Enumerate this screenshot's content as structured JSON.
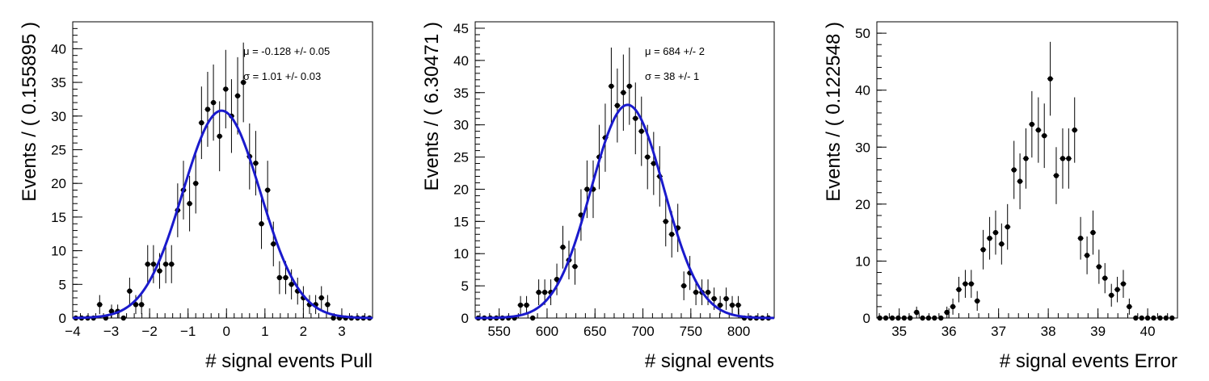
{
  "chart_data": [
    {
      "type": "scatter",
      "xlabel": "# signal events Pull",
      "ylabel": "Events / ( 0.155895 )",
      "xlim": [
        -4,
        3.8
      ],
      "ylim": [
        0,
        44
      ],
      "xticks": [
        -4,
        -3,
        -2,
        -1,
        0,
        1,
        2,
        3
      ],
      "xtick_labels": [
        "−4",
        "−3",
        "−2",
        "−1",
        "0",
        "1",
        "2",
        "3"
      ],
      "yticks": [
        0,
        5,
        10,
        15,
        20,
        25,
        30,
        35,
        40
      ],
      "ytick_labels": [
        "0",
        "5",
        "10",
        "15",
        "20",
        "25",
        "30",
        "35",
        "40"
      ],
      "x": [
        -3.92,
        -3.77,
        -3.61,
        -3.46,
        -3.3,
        -3.14,
        -2.99,
        -2.83,
        -2.68,
        -2.52,
        -2.36,
        -2.21,
        -2.05,
        -1.9,
        -1.74,
        -1.58,
        -1.43,
        -1.27,
        -1.12,
        -0.96,
        -0.8,
        -0.65,
        -0.49,
        -0.34,
        -0.18,
        -0.02,
        0.13,
        0.29,
        0.44,
        0.6,
        0.76,
        0.91,
        1.07,
        1.22,
        1.38,
        1.54,
        1.69,
        1.85,
        2.0,
        2.16,
        2.32,
        2.47,
        2.63,
        2.78,
        2.94,
        3.1,
        3.25,
        3.41,
        3.56,
        3.72
      ],
      "y": [
        0,
        0,
        0,
        0,
        2,
        0,
        1,
        1,
        0,
        4,
        2,
        2,
        8,
        8,
        7,
        8,
        8,
        16,
        19,
        17,
        20,
        29,
        31,
        32,
        27,
        34,
        30,
        33,
        35,
        24,
        23,
        14,
        19,
        11,
        6,
        6,
        5,
        4,
        3,
        2,
        2,
        3,
        2,
        0,
        0,
        0,
        0,
        0,
        0,
        0
      ],
      "fit": {
        "type": "gaussian",
        "mean": -0.128,
        "sigma": 1.01,
        "peak": 30.8,
        "color": "#1a1acc"
      },
      "annotations": [
        "μ = -0.128 +/- 0.05",
        "σ =  1.01 +/- 0.03"
      ]
    },
    {
      "type": "scatter",
      "xlabel": "# signal events",
      "ylabel": "Events / ( 6.30471 )",
      "xlim": [
        525,
        837
      ],
      "ylim": [
        0,
        46
      ],
      "xticks": [
        550,
        600,
        650,
        700,
        750,
        800
      ],
      "xtick_labels": [
        "550",
        "600",
        "650",
        "700",
        "750",
        "800"
      ],
      "yticks": [
        0,
        5,
        10,
        15,
        20,
        25,
        30,
        35,
        40,
        45
      ],
      "ytick_labels": [
        "0",
        "5",
        "10",
        "15",
        "20",
        "25",
        "30",
        "35",
        "40",
        "45"
      ],
      "x": [
        528.2,
        534.5,
        540.8,
        547.1,
        553.4,
        559.7,
        566.0,
        572.3,
        578.6,
        585.0,
        591.3,
        597.6,
        603.9,
        610.2,
        616.5,
        622.8,
        629.1,
        635.4,
        641.7,
        648.1,
        654.4,
        660.7,
        667.0,
        673.3,
        679.6,
        685.9,
        692.2,
        698.5,
        704.8,
        711.2,
        717.5,
        723.8,
        730.1,
        736.4,
        742.7,
        749.0,
        755.3,
        761.6,
        767.9,
        774.3,
        780.6,
        786.9,
        793.2,
        799.5,
        805.8,
        812.1,
        818.4,
        824.7,
        831.0
      ],
      "y": [
        0,
        0,
        0,
        0,
        0,
        0,
        0,
        2,
        2,
        0,
        4,
        4,
        4,
        6,
        11,
        9,
        8,
        16,
        20,
        20,
        25,
        28,
        36,
        33,
        35,
        36,
        31,
        29,
        25,
        24,
        22,
        15,
        13,
        14,
        5,
        7,
        4,
        4,
        4,
        3,
        2,
        3,
        2,
        2,
        0,
        0,
        0,
        0,
        0
      ],
      "fit": {
        "type": "gaussian",
        "mean": 684,
        "sigma": 38,
        "peak": 33.1,
        "color": "#1a1acc"
      },
      "annotations": [
        "μ =  684 +/- 2",
        "σ =  38 +/- 1"
      ]
    },
    {
      "type": "scatter",
      "xlabel": "# signal events Error",
      "ylabel": "Events / ( 0.122548 )",
      "xlim": [
        34.55,
        40.6
      ],
      "ylim": [
        0,
        52
      ],
      "xticks": [
        35,
        36,
        37,
        38,
        39,
        40
      ],
      "xtick_labels": [
        "35",
        "36",
        "37",
        "38",
        "39",
        "40"
      ],
      "yticks": [
        0,
        10,
        20,
        30,
        40,
        50
      ],
      "ytick_labels": [
        "0",
        "10",
        "20",
        "30",
        "40",
        "50"
      ],
      "x": [
        34.61,
        34.73,
        34.86,
        34.98,
        35.1,
        35.22,
        35.35,
        35.47,
        35.59,
        35.71,
        35.84,
        35.96,
        36.08,
        36.2,
        36.33,
        36.45,
        36.57,
        36.69,
        36.82,
        36.94,
        37.06,
        37.18,
        37.31,
        37.43,
        37.55,
        37.67,
        37.8,
        37.92,
        38.04,
        38.16,
        38.29,
        38.41,
        38.53,
        38.65,
        38.78,
        38.9,
        39.02,
        39.14,
        39.27,
        39.39,
        39.51,
        39.63,
        39.76,
        39.88,
        40.0,
        40.12,
        40.25,
        40.37,
        40.49
      ],
      "y": [
        0,
        0,
        0,
        0,
        0,
        0,
        1,
        0,
        0,
        0,
        0,
        1,
        2,
        5,
        6,
        6,
        3,
        12,
        14,
        15,
        13,
        16,
        26,
        24,
        28,
        34,
        33,
        32,
        42,
        25,
        28,
        28,
        33,
        14,
        11,
        15,
        9,
        7,
        4,
        5,
        6,
        2,
        0,
        0,
        0,
        0,
        0,
        0,
        0
      ]
    }
  ]
}
